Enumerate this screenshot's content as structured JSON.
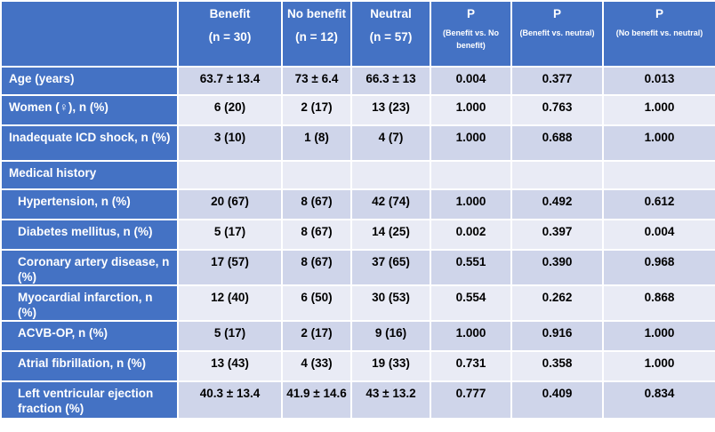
{
  "colors": {
    "header_bg": "#4472c4",
    "row_dark": "#cfd5ea",
    "row_light": "#e9ebf5"
  },
  "header": {
    "corner": "",
    "cols": [
      {
        "title": "Benefit",
        "sub": "(n = 30)",
        "style": "big"
      },
      {
        "title": "No benefit",
        "sub": "(n = 12)",
        "style": "big"
      },
      {
        "title": "Neutral",
        "sub": "(n = 57)",
        "style": "big"
      },
      {
        "title": "P",
        "sub": "(Benefit vs.  No benefit)",
        "style": "small"
      },
      {
        "title": "P",
        "sub": "(Benefit vs. neutral)",
        "style": "small"
      },
      {
        "title": "P",
        "sub": "(No benefit vs. neutral)",
        "style": "small"
      }
    ]
  },
  "rows": [
    {
      "label": "Age (years)",
      "sub": false,
      "values": [
        "63.7 ± 13.4",
        "73 ± 6.4",
        "66.3 ± 13",
        "0.004",
        "0.377",
        "0.013"
      ]
    },
    {
      "label": "Women (♀), n (%)",
      "sub": false,
      "values": [
        "6 (20)",
        "2 (17)",
        "13 (23)",
        "1.000",
        "0.763",
        "1.000"
      ]
    },
    {
      "label": "Inadequate ICD shock, n (%)",
      "sub": false,
      "values": [
        "3 (10)",
        "1 (8)",
        "4 (7)",
        "1.000",
        "0.688",
        "1.000"
      ]
    },
    {
      "label": "Medical history",
      "sub": false,
      "values": [
        "",
        "",
        "",
        "",
        "",
        ""
      ]
    },
    {
      "label": "Hypertension, n (%)",
      "sub": true,
      "values": [
        "20 (67)",
        "8 (67)",
        "42 (74)",
        "1.000",
        "0.492",
        "0.612"
      ]
    },
    {
      "label": "Diabetes mellitus, n (%)",
      "sub": true,
      "values": [
        "5 (17)",
        "8 (67)",
        "14 (25)",
        "0.002",
        "0.397",
        "0.004"
      ]
    },
    {
      "label": "Coronary artery disease, n (%)",
      "sub": true,
      "values": [
        "17 (57)",
        "8 (67)",
        "37 (65)",
        "0.551",
        "0.390",
        "0.968"
      ]
    },
    {
      "label": "Myocardial infarction, n (%)",
      "sub": true,
      "values": [
        "12 (40)",
        "6 (50)",
        "30 (53)",
        "0.554",
        "0.262",
        "0.868"
      ]
    },
    {
      "label": "ACVB-OP, n (%)",
      "sub": true,
      "values": [
        "5 (17)",
        "2 (17)",
        "9 (16)",
        "1.000",
        "0.916",
        "1.000"
      ]
    },
    {
      "label": "Atrial fibrillation,  n (%)",
      "sub": true,
      "values": [
        "13 (43)",
        "4 (33)",
        "19 (33)",
        "0.731",
        "0.358",
        "1.000"
      ]
    },
    {
      "label": "Left ventricular ejection fraction (%)",
      "sub": true,
      "values": [
        "40.3 ± 13.4",
        "41.9 ± 14.6",
        "43 ± 13.2",
        "0.777",
        "0.409",
        "0.834"
      ]
    }
  ]
}
